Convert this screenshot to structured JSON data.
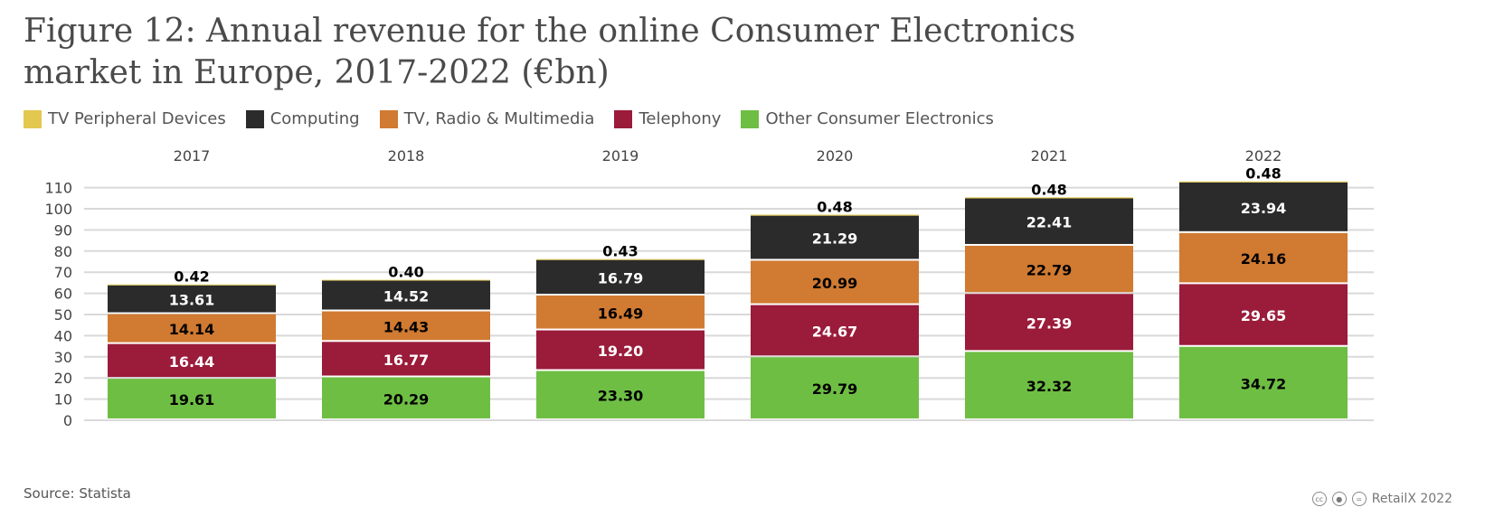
{
  "title_line1": "Figure 12: Annual revenue for the online Consumer Electronics",
  "title_line2": "market in Europe, 2017-2022 (€bn)",
  "legend": [
    {
      "name": "TV Peripheral Devices",
      "color": "#e3c84f"
    },
    {
      "name": "Computing",
      "color": "#2b2b2b"
    },
    {
      "name": "TV, Radio & Multimedia",
      "color": "#d07a32"
    },
    {
      "name": "Telephony",
      "color": "#9b1b3a"
    },
    {
      "name": "Other Consumer Electronics",
      "color": "#6ebe44"
    }
  ],
  "source": "Source: Statista",
  "credit": "RetailX 2022",
  "chart_data": {
    "type": "bar",
    "stacked": true,
    "categories": [
      "2017",
      "2018",
      "2019",
      "2020",
      "2021",
      "2022"
    ],
    "series": [
      {
        "name": "Other Consumer Electronics",
        "color": "#6ebe44",
        "values": [
          19.61,
          20.29,
          23.3,
          29.79,
          32.32,
          34.72
        ]
      },
      {
        "name": "Telephony",
        "color": "#9b1b3a",
        "values": [
          16.44,
          16.77,
          19.2,
          24.67,
          27.39,
          29.65
        ]
      },
      {
        "name": "TV, Radio & Multimedia",
        "color": "#d07a32",
        "values": [
          14.14,
          14.43,
          16.49,
          20.99,
          22.79,
          24.16
        ]
      },
      {
        "name": "Computing",
        "color": "#2b2b2b",
        "values": [
          13.61,
          14.52,
          16.79,
          21.29,
          22.41,
          23.94
        ]
      },
      {
        "name": "TV Peripheral Devices",
        "color": "#e3c84f",
        "values": [
          0.42,
          0.4,
          0.43,
          0.48,
          0.48,
          0.48
        ]
      }
    ],
    "yticks": [
      0,
      10,
      20,
      30,
      40,
      50,
      60,
      70,
      80,
      90,
      100,
      110
    ],
    "ylim": [
      0,
      110
    ],
    "grid": true,
    "legend_position": "top-left"
  }
}
